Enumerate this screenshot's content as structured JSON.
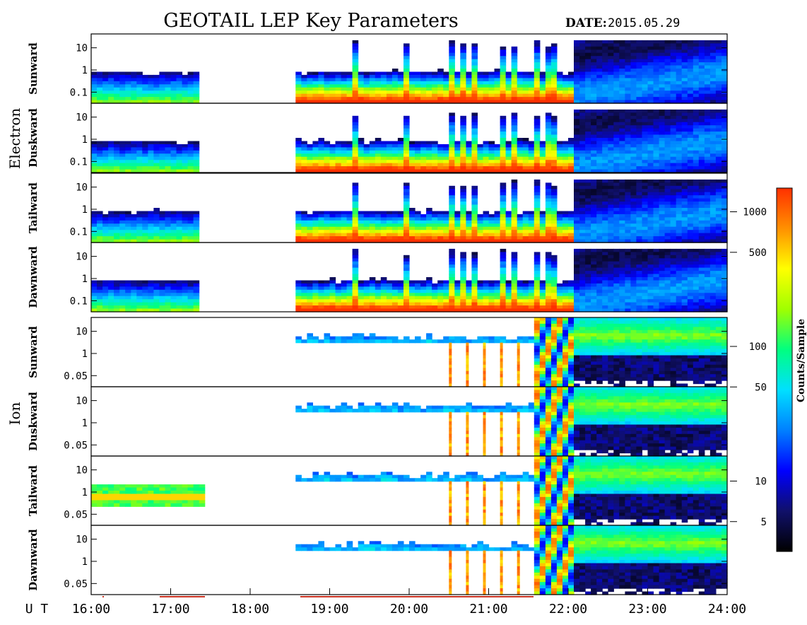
{
  "chart_data": {
    "type": "heatmap",
    "title": "GEOTAIL LEP Key Parameters",
    "date_label": "DATE:",
    "date_value": "2015.05.29",
    "x_axis_label": "U T",
    "x_ticks": [
      "16:00",
      "17:00",
      "18:00",
      "19:00",
      "20:00",
      "21:00",
      "22:00",
      "23:00",
      "24:00"
    ],
    "x_range_hours": [
      16,
      24
    ],
    "data_gap_hours": [
      17.37,
      18.6
    ],
    "groups": [
      {
        "name": "Electron",
        "panels": [
          {
            "name": "Sunward",
            "y_ticks": [
              "10",
              "1",
              "0.1"
            ]
          },
          {
            "name": "Duskward",
            "y_ticks": [
              "10",
              "1",
              "0.1"
            ]
          },
          {
            "name": "Tailward",
            "y_ticks": [
              "10",
              "1",
              "0.1"
            ]
          },
          {
            "name": "Dawnward",
            "y_ticks": [
              "10",
              "1",
              "0.1"
            ]
          }
        ]
      },
      {
        "name": "Ion",
        "panels": [
          {
            "name": "Sunward",
            "y_ticks": [
              "10",
              "1",
              "0.05"
            ]
          },
          {
            "name": "Duskward",
            "y_ticks": [
              "10",
              "1",
              "0.05"
            ]
          },
          {
            "name": "Tailward",
            "y_ticks": [
              "10",
              "1",
              "0.05"
            ]
          },
          {
            "name": "Dawnward",
            "y_ticks": [
              "10",
              "1",
              "0.05"
            ]
          }
        ]
      }
    ],
    "colorbar": {
      "label": "Counts/Sample",
      "range": [
        3,
        1500
      ],
      "scale": "log",
      "ticks": [
        "1000",
        "500",
        "100",
        "50",
        "10",
        "5"
      ],
      "tick_values": [
        1000,
        500,
        100,
        50,
        10,
        5
      ],
      "colors": [
        "#000000",
        "#10106a",
        "#0000ff",
        "#0080ff",
        "#00e0ff",
        "#00ff80",
        "#a0ff00",
        "#ffff00",
        "#ff9000",
        "#ff3000"
      ]
    }
  }
}
